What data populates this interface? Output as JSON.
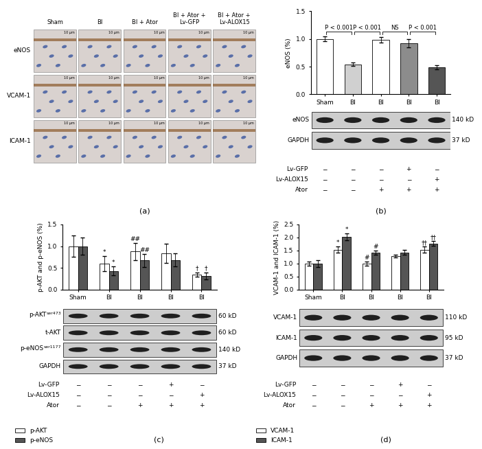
{
  "image_panel": {
    "panel_label": "(a)",
    "columns": [
      "Sham",
      "BI",
      "BI + Ator",
      "BI + Ator + Lv-GFP",
      "BI + Ator + Lv-ALOX15"
    ],
    "rows": [
      "eNOS",
      "VCAM-1",
      "ICAM-1"
    ],
    "scale_bar": "10 μm"
  },
  "chart_data": [
    {
      "type": "bar",
      "panel_label": "(b)",
      "y_label": "eNOS (%)",
      "categories": [
        "Sham",
        "BI",
        "BI",
        "BI",
        "BI"
      ],
      "series": [
        {
          "colors": [
            "#ffffff",
            "#d0d0d0",
            "#ffffff",
            "#8c8c8c",
            "#555555"
          ],
          "values": [
            1.0,
            0.54,
            0.98,
            0.92,
            0.49
          ],
          "errors": [
            0.04,
            0.03,
            0.05,
            0.07,
            0.04
          ]
        }
      ],
      "ylim": [
        0,
        1.5
      ],
      "yticks": [
        {
          "value": 0,
          "label": "0.0"
        },
        0.5,
        {
          "value": 1,
          "label": "1.0"
        },
        1.5
      ],
      "comparisons": [
        {
          "from": 0,
          "to": 1,
          "label": "P < 0.001"
        },
        {
          "from": 1,
          "to": 2,
          "label": "P < 0.001"
        },
        {
          "from": 2,
          "to": 3,
          "label": "NS"
        },
        {
          "from": 3,
          "to": 4,
          "label": "P < 0.001"
        }
      ],
      "blot": [
        {
          "label": "eNOS",
          "size": "140 kD"
        },
        {
          "label": "GAPDH",
          "size": "37 kD"
        }
      ],
      "conditions": [
        {
          "label": "Lv-GFP",
          "marks": [
            "−",
            "−",
            "−",
            "+",
            "−"
          ]
        },
        {
          "label": "Lv-ALOX15",
          "marks": [
            "−",
            "−",
            "−",
            "−",
            "+"
          ]
        },
        {
          "label": "Ator",
          "marks": [
            "−",
            "−",
            "+",
            "+",
            "+"
          ]
        }
      ]
    },
    {
      "type": "bar",
      "panel_label": "(c)",
      "y_label": "p-AKT and p-eNOS (%)",
      "categories": [
        "Sham",
        "BI",
        "BI",
        "BI",
        "BI"
      ],
      "series": [
        {
          "name": "p-AKT",
          "color": "#ffffff",
          "values": [
            1.0,
            0.6,
            0.88,
            0.83,
            0.35
          ],
          "errors": [
            0.25,
            0.18,
            0.2,
            0.22,
            0.05
          ],
          "marks": [
            null,
            "*",
            "##",
            null,
            "†"
          ]
        },
        {
          "name": "p-eNOS",
          "color": "#555555",
          "values": [
            1.0,
            0.43,
            0.67,
            0.68,
            0.32
          ],
          "errors": [
            0.2,
            0.1,
            0.15,
            0.15,
            0.08
          ],
          "marks": [
            null,
            "*",
            "##",
            null,
            "†"
          ]
        }
      ],
      "ylim": [
        0,
        1.5
      ],
      "yticks": [
        {
          "value": 0,
          "label": "0.0"
        },
        0.5,
        {
          "value": 1,
          "label": "1.0"
        },
        1.5
      ],
      "legend": "lower left",
      "blot": [
        {
          "label": "p-AKT",
          "superscript": "ser473",
          "size": "60 kD"
        },
        {
          "label": "t-AKT",
          "size": "60 kD"
        },
        {
          "label": "p-eNOS",
          "superscript": "ser1177",
          "size": "140 kD"
        },
        {
          "label": "GAPDH",
          "size": "37 kD"
        }
      ],
      "conditions": [
        {
          "label": "Lv-GFP",
          "marks": [
            "−",
            "−",
            "−",
            "+",
            "−"
          ]
        },
        {
          "label": "Lv-ALOX15",
          "marks": [
            "−",
            "−",
            "−",
            "−",
            "+"
          ]
        },
        {
          "label": "Ator",
          "marks": [
            "−",
            "−",
            "+",
            "+",
            "+"
          ]
        }
      ]
    },
    {
      "type": "bar",
      "panel_label": "(d)",
      "y_label": "VCAM-1 and ICAM-1 (%)",
      "categories": [
        "Sham",
        "BI",
        "BI",
        "BI",
        "BI"
      ],
      "series": [
        {
          "name": "VCAM-1",
          "color": "#ffffff",
          "values": [
            1.0,
            1.53,
            1.0,
            1.28,
            1.53
          ],
          "errors": [
            0.08,
            0.12,
            0.08,
            0.05,
            0.12
          ],
          "marks": [
            null,
            "*",
            "#",
            null,
            "††"
          ]
        },
        {
          "name": "ICAM-1",
          "color": "#555555",
          "values": [
            1.0,
            2.02,
            1.42,
            1.43,
            1.77
          ],
          "errors": [
            0.13,
            0.13,
            0.07,
            0.1,
            0.1
          ],
          "marks": [
            null,
            "*",
            "#",
            null,
            "††"
          ]
        }
      ],
      "ylim": [
        0,
        2.5
      ],
      "yticks": [
        {
          "value": 0,
          "label": "0.0"
        },
        0.5,
        {
          "value": 1,
          "label": "1.0"
        },
        1.5,
        {
          "value": 2,
          "label": "2.0"
        },
        2.5
      ],
      "legend": "lower left",
      "blot": [
        {
          "label": "VCAM-1",
          "size": "110 kD"
        },
        {
          "label": "ICAM-1",
          "size": "95 kD"
        },
        {
          "label": "GAPDH",
          "size": "37 kD"
        }
      ],
      "conditions": [
        {
          "label": "Lv-GFP",
          "marks": [
            "−",
            "−",
            "−",
            "+",
            "−"
          ]
        },
        {
          "label": "Lv-ALOX15",
          "marks": [
            "−",
            "−",
            "−",
            "−",
            "+"
          ]
        },
        {
          "label": "Ator",
          "marks": [
            "−",
            "−",
            "+",
            "+",
            "+"
          ]
        }
      ]
    }
  ]
}
